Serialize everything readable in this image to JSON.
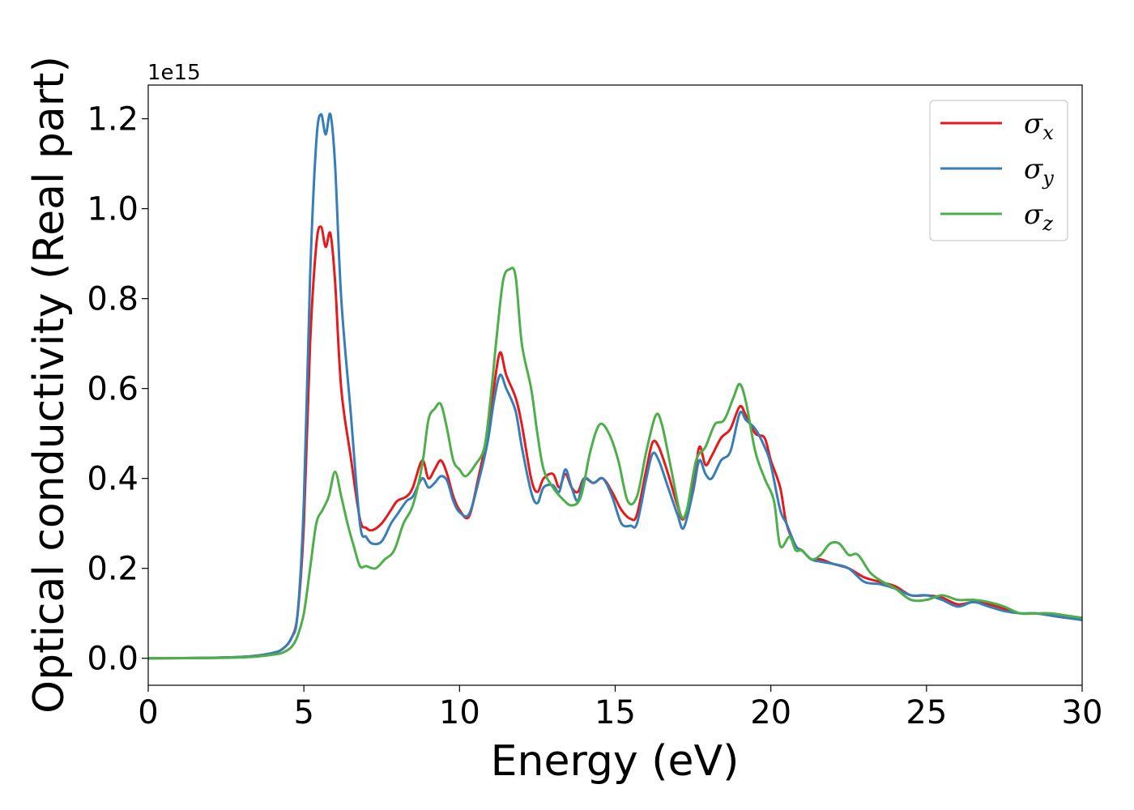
{
  "chart_data": {
    "type": "line",
    "title": "",
    "xlabel": "Energy (eV)",
    "ylabel": "Optical conductivity (Real part)",
    "y_offset_text": "1e15",
    "xlim": [
      0,
      30
    ],
    "ylim": [
      -0.06,
      1.275
    ],
    "x_ticks": [
      0,
      5,
      10,
      15,
      20,
      25,
      30
    ],
    "x_tick_labels": [
      "0",
      "5",
      "10",
      "15",
      "20",
      "25",
      "30"
    ],
    "y_ticks": [
      0.0,
      0.2,
      0.4,
      0.6,
      0.8,
      1.0,
      1.2
    ],
    "y_tick_labels": [
      "0.0",
      "0.2",
      "0.4",
      "0.6",
      "0.8",
      "1.0",
      "1.2"
    ],
    "grid": false,
    "legend_position": "top-right",
    "series": [
      {
        "name": "σx",
        "symbol": "σ",
        "subscript": "x",
        "color": "#e41a1c",
        "points": [
          [
            0,
            0
          ],
          [
            2,
            0.001
          ],
          [
            3,
            0.003
          ],
          [
            3.5,
            0.006
          ],
          [
            4,
            0.012
          ],
          [
            4.3,
            0.02
          ],
          [
            4.6,
            0.045
          ],
          [
            4.8,
            0.1
          ],
          [
            5.0,
            0.3
          ],
          [
            5.2,
            0.7
          ],
          [
            5.4,
            0.92
          ],
          [
            5.55,
            0.96
          ],
          [
            5.7,
            0.915
          ],
          [
            5.85,
            0.945
          ],
          [
            6.0,
            0.84
          ],
          [
            6.2,
            0.6
          ],
          [
            6.5,
            0.45
          ],
          [
            6.8,
            0.31
          ],
          [
            7.0,
            0.29
          ],
          [
            7.2,
            0.285
          ],
          [
            7.5,
            0.3
          ],
          [
            7.8,
            0.33
          ],
          [
            8.0,
            0.35
          ],
          [
            8.3,
            0.36
          ],
          [
            8.5,
            0.38
          ],
          [
            8.8,
            0.44
          ],
          [
            9.0,
            0.4
          ],
          [
            9.2,
            0.42
          ],
          [
            9.4,
            0.44
          ],
          [
            9.6,
            0.41
          ],
          [
            9.8,
            0.36
          ],
          [
            10.0,
            0.33
          ],
          [
            10.3,
            0.315
          ],
          [
            10.6,
            0.4
          ],
          [
            10.9,
            0.5
          ],
          [
            11.1,
            0.6
          ],
          [
            11.3,
            0.68
          ],
          [
            11.5,
            0.63
          ],
          [
            11.8,
            0.58
          ],
          [
            12.0,
            0.52
          ],
          [
            12.3,
            0.4
          ],
          [
            12.5,
            0.37
          ],
          [
            12.7,
            0.4
          ],
          [
            13.0,
            0.41
          ],
          [
            13.2,
            0.38
          ],
          [
            13.4,
            0.41
          ],
          [
            13.6,
            0.38
          ],
          [
            13.8,
            0.37
          ],
          [
            14.0,
            0.4
          ],
          [
            14.3,
            0.39
          ],
          [
            14.6,
            0.4
          ],
          [
            14.9,
            0.37
          ],
          [
            15.2,
            0.33
          ],
          [
            15.5,
            0.31
          ],
          [
            15.7,
            0.32
          ],
          [
            16.0,
            0.42
          ],
          [
            16.2,
            0.48
          ],
          [
            16.4,
            0.47
          ],
          [
            16.7,
            0.41
          ],
          [
            17.0,
            0.34
          ],
          [
            17.2,
            0.31
          ],
          [
            17.5,
            0.38
          ],
          [
            17.7,
            0.47
          ],
          [
            17.9,
            0.43
          ],
          [
            18.1,
            0.45
          ],
          [
            18.4,
            0.49
          ],
          [
            18.7,
            0.51
          ],
          [
            19.0,
            0.56
          ],
          [
            19.2,
            0.54
          ],
          [
            19.5,
            0.5
          ],
          [
            19.8,
            0.49
          ],
          [
            20.0,
            0.44
          ],
          [
            20.3,
            0.38
          ],
          [
            20.5,
            0.3
          ],
          [
            20.8,
            0.25
          ],
          [
            21.0,
            0.24
          ],
          [
            21.3,
            0.22
          ],
          [
            21.6,
            0.22
          ],
          [
            22.0,
            0.21
          ],
          [
            22.5,
            0.2
          ],
          [
            23.0,
            0.18
          ],
          [
            23.5,
            0.17
          ],
          [
            24.0,
            0.16
          ],
          [
            24.5,
            0.14
          ],
          [
            25.0,
            0.14
          ],
          [
            25.5,
            0.135
          ],
          [
            26.0,
            0.12
          ],
          [
            26.5,
            0.125
          ],
          [
            27.0,
            0.12
          ],
          [
            27.5,
            0.11
          ],
          [
            28.0,
            0.1
          ],
          [
            28.5,
            0.1
          ],
          [
            29.0,
            0.095
          ],
          [
            29.5,
            0.09
          ],
          [
            30.0,
            0.09
          ]
        ]
      },
      {
        "name": "σy",
        "symbol": "σ",
        "subscript": "y",
        "color": "#377eb8",
        "points": [
          [
            0,
            0
          ],
          [
            2,
            0.001
          ],
          [
            3,
            0.003
          ],
          [
            3.5,
            0.006
          ],
          [
            4,
            0.012
          ],
          [
            4.3,
            0.02
          ],
          [
            4.6,
            0.045
          ],
          [
            4.8,
            0.1
          ],
          [
            5.0,
            0.35
          ],
          [
            5.2,
            0.85
          ],
          [
            5.4,
            1.15
          ],
          [
            5.55,
            1.21
          ],
          [
            5.7,
            1.165
          ],
          [
            5.85,
            1.21
          ],
          [
            6.0,
            1.1
          ],
          [
            6.2,
            0.8
          ],
          [
            6.5,
            0.55
          ],
          [
            6.8,
            0.3
          ],
          [
            7.0,
            0.27
          ],
          [
            7.2,
            0.255
          ],
          [
            7.5,
            0.26
          ],
          [
            7.8,
            0.3
          ],
          [
            8.0,
            0.32
          ],
          [
            8.3,
            0.35
          ],
          [
            8.5,
            0.36
          ],
          [
            8.8,
            0.4
          ],
          [
            9.0,
            0.38
          ],
          [
            9.2,
            0.39
          ],
          [
            9.4,
            0.405
          ],
          [
            9.6,
            0.395
          ],
          [
            9.8,
            0.35
          ],
          [
            10.0,
            0.325
          ],
          [
            10.3,
            0.32
          ],
          [
            10.6,
            0.39
          ],
          [
            10.9,
            0.48
          ],
          [
            11.1,
            0.57
          ],
          [
            11.3,
            0.63
          ],
          [
            11.5,
            0.6
          ],
          [
            11.8,
            0.55
          ],
          [
            12.0,
            0.47
          ],
          [
            12.3,
            0.37
          ],
          [
            12.5,
            0.345
          ],
          [
            12.7,
            0.38
          ],
          [
            13.0,
            0.385
          ],
          [
            13.2,
            0.37
          ],
          [
            13.4,
            0.42
          ],
          [
            13.6,
            0.38
          ],
          [
            13.8,
            0.35
          ],
          [
            14.0,
            0.4
          ],
          [
            14.3,
            0.39
          ],
          [
            14.6,
            0.4
          ],
          [
            14.9,
            0.36
          ],
          [
            15.2,
            0.3
          ],
          [
            15.5,
            0.295
          ],
          [
            15.7,
            0.3
          ],
          [
            16.0,
            0.4
          ],
          [
            16.2,
            0.455
          ],
          [
            16.4,
            0.44
          ],
          [
            16.7,
            0.38
          ],
          [
            17.0,
            0.32
          ],
          [
            17.2,
            0.29
          ],
          [
            17.5,
            0.37
          ],
          [
            17.7,
            0.44
          ],
          [
            17.9,
            0.41
          ],
          [
            18.1,
            0.4
          ],
          [
            18.4,
            0.44
          ],
          [
            18.7,
            0.46
          ],
          [
            19.0,
            0.545
          ],
          [
            19.2,
            0.53
          ],
          [
            19.5,
            0.51
          ],
          [
            19.8,
            0.47
          ],
          [
            20.0,
            0.43
          ],
          [
            20.3,
            0.33
          ],
          [
            20.5,
            0.3
          ],
          [
            20.8,
            0.25
          ],
          [
            21.0,
            0.24
          ],
          [
            21.3,
            0.22
          ],
          [
            21.6,
            0.215
          ],
          [
            22.0,
            0.21
          ],
          [
            22.5,
            0.2
          ],
          [
            23.0,
            0.17
          ],
          [
            23.5,
            0.165
          ],
          [
            24.0,
            0.155
          ],
          [
            24.5,
            0.14
          ],
          [
            25.0,
            0.14
          ],
          [
            25.5,
            0.13
          ],
          [
            26.0,
            0.115
          ],
          [
            26.5,
            0.125
          ],
          [
            27.0,
            0.115
          ],
          [
            27.5,
            0.105
          ],
          [
            28.0,
            0.1
          ],
          [
            28.5,
            0.1
          ],
          [
            29.0,
            0.095
          ],
          [
            29.5,
            0.09
          ],
          [
            30.0,
            0.085
          ]
        ]
      },
      {
        "name": "σz",
        "symbol": "σ",
        "subscript": "z",
        "color": "#4daf4a",
        "points": [
          [
            0,
            0
          ],
          [
            2,
            0.0005
          ],
          [
            3,
            0.002
          ],
          [
            3.5,
            0.004
          ],
          [
            4,
            0.008
          ],
          [
            4.3,
            0.012
          ],
          [
            4.6,
            0.025
          ],
          [
            4.8,
            0.05
          ],
          [
            5.0,
            0.1
          ],
          [
            5.2,
            0.2
          ],
          [
            5.4,
            0.3
          ],
          [
            5.6,
            0.33
          ],
          [
            5.8,
            0.36
          ],
          [
            6.0,
            0.415
          ],
          [
            6.2,
            0.36
          ],
          [
            6.4,
            0.3
          ],
          [
            6.6,
            0.25
          ],
          [
            6.8,
            0.205
          ],
          [
            7.0,
            0.205
          ],
          [
            7.3,
            0.2
          ],
          [
            7.6,
            0.22
          ],
          [
            7.9,
            0.24
          ],
          [
            8.2,
            0.3
          ],
          [
            8.5,
            0.34
          ],
          [
            8.8,
            0.43
          ],
          [
            9.0,
            0.53
          ],
          [
            9.2,
            0.555
          ],
          [
            9.4,
            0.565
          ],
          [
            9.6,
            0.51
          ],
          [
            9.8,
            0.44
          ],
          [
            10.0,
            0.42
          ],
          [
            10.2,
            0.405
          ],
          [
            10.5,
            0.43
          ],
          [
            10.8,
            0.47
          ],
          [
            11.0,
            0.58
          ],
          [
            11.2,
            0.72
          ],
          [
            11.4,
            0.84
          ],
          [
            11.6,
            0.865
          ],
          [
            11.8,
            0.85
          ],
          [
            12.0,
            0.7
          ],
          [
            12.3,
            0.6
          ],
          [
            12.5,
            0.5
          ],
          [
            12.7,
            0.42
          ],
          [
            13.0,
            0.38
          ],
          [
            13.3,
            0.355
          ],
          [
            13.6,
            0.34
          ],
          [
            13.9,
            0.36
          ],
          [
            14.2,
            0.46
          ],
          [
            14.5,
            0.52
          ],
          [
            14.8,
            0.5
          ],
          [
            15.1,
            0.44
          ],
          [
            15.4,
            0.35
          ],
          [
            15.7,
            0.36
          ],
          [
            16.0,
            0.46
          ],
          [
            16.3,
            0.54
          ],
          [
            16.5,
            0.52
          ],
          [
            16.8,
            0.42
          ],
          [
            17.1,
            0.32
          ],
          [
            17.3,
            0.33
          ],
          [
            17.6,
            0.44
          ],
          [
            17.9,
            0.47
          ],
          [
            18.2,
            0.52
          ],
          [
            18.5,
            0.53
          ],
          [
            18.8,
            0.58
          ],
          [
            19.0,
            0.61
          ],
          [
            19.2,
            0.57
          ],
          [
            19.5,
            0.46
          ],
          [
            19.8,
            0.4
          ],
          [
            20.1,
            0.35
          ],
          [
            20.3,
            0.25
          ],
          [
            20.6,
            0.27
          ],
          [
            20.8,
            0.24
          ],
          [
            21.0,
            0.24
          ],
          [
            21.3,
            0.22
          ],
          [
            21.6,
            0.23
          ],
          [
            21.9,
            0.255
          ],
          [
            22.2,
            0.255
          ],
          [
            22.5,
            0.23
          ],
          [
            22.8,
            0.23
          ],
          [
            23.2,
            0.19
          ],
          [
            23.6,
            0.17
          ],
          [
            24.0,
            0.155
          ],
          [
            24.5,
            0.13
          ],
          [
            25.0,
            0.13
          ],
          [
            25.5,
            0.14
          ],
          [
            26.0,
            0.13
          ],
          [
            26.5,
            0.13
          ],
          [
            27.0,
            0.125
          ],
          [
            27.5,
            0.115
          ],
          [
            28.0,
            0.1
          ],
          [
            28.5,
            0.1
          ],
          [
            29.0,
            0.1
          ],
          [
            29.5,
            0.095
          ],
          [
            30.0,
            0.09
          ]
        ]
      }
    ]
  }
}
